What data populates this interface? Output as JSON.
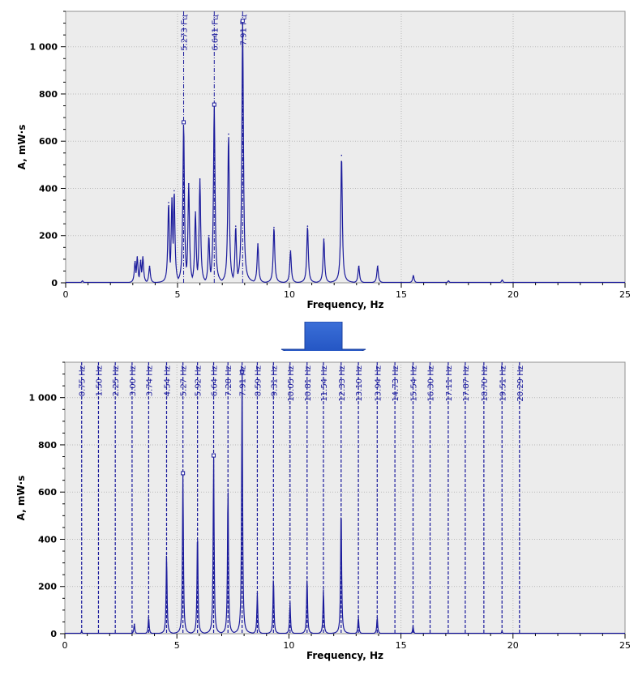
{
  "charts": [
    {
      "id": "top",
      "chart_data": {
        "type": "line",
        "xlabel": "Frequency, Hz",
        "ylabel": "A, mW·s",
        "xlim": [
          0,
          25
        ],
        "ylim": [
          0,
          1150
        ],
        "x_ticks": [
          0,
          5,
          10,
          15,
          20,
          25
        ],
        "y_ticks": [
          0,
          200,
          400,
          600,
          800,
          1000
        ],
        "y_tick_labels": [
          "0",
          "200",
          "400",
          "600",
          "800",
          "1 000"
        ],
        "grid": true,
        "line_color": "#1a1a9c",
        "marker_lines": [
          {
            "x": 5.273,
            "label": "5.273 Гц",
            "y_marker": 680
          },
          {
            "x": 6.641,
            "label": "6.641 Гц",
            "y_marker": 755
          },
          {
            "x": 7.91,
            "label": "7.91 Гц",
            "y_marker": 1110
          }
        ],
        "series": [
          {
            "peaks": [
              [
                0.75,
                8
              ],
              [
                3.1,
                90
              ],
              [
                3.2,
                110
              ],
              [
                3.35,
                95
              ],
              [
                3.45,
                110
              ],
              [
                3.75,
                70
              ],
              [
                4.6,
                340
              ],
              [
                4.75,
                360
              ],
              [
                4.85,
                390
              ],
              [
                5.273,
                680
              ],
              [
                5.5,
                420
              ],
              [
                5.8,
                300
              ],
              [
                6.0,
                440
              ],
              [
                6.4,
                200
              ],
              [
                6.641,
                755
              ],
              [
                7.28,
                630
              ],
              [
                7.6,
                240
              ],
              [
                7.91,
                1110
              ],
              [
                8.59,
                165
              ],
              [
                9.31,
                235
              ],
              [
                10.05,
                135
              ],
              [
                10.81,
                240
              ],
              [
                11.54,
                185
              ],
              [
                12.33,
                540
              ],
              [
                13.1,
                70
              ],
              [
                13.94,
                70
              ],
              [
                15.54,
                30
              ],
              [
                17.11,
                8
              ],
              [
                19.51,
                12
              ]
            ]
          }
        ]
      }
    },
    {
      "id": "bottom",
      "chart_data": {
        "type": "line",
        "xlabel": "Frequency, Hz",
        "ylabel": "A, mW·s",
        "xlim": [
          0,
          25
        ],
        "ylim": [
          0,
          1150
        ],
        "x_ticks": [
          0,
          5,
          10,
          15,
          20,
          25
        ],
        "y_ticks": [
          0,
          200,
          400,
          600,
          800,
          1000
        ],
        "y_tick_labels": [
          "0",
          "200",
          "400",
          "600",
          "800",
          "1 000"
        ],
        "grid": true,
        "line_color": "#1a1a9c",
        "marker_lines": [
          {
            "x": 0.75,
            "label": "0.75 Hz"
          },
          {
            "x": 1.5,
            "label": "1.50 Hz"
          },
          {
            "x": 2.25,
            "label": "2.25 Hz"
          },
          {
            "x": 3.0,
            "label": "3.00 Hz"
          },
          {
            "x": 3.74,
            "label": "3.74 Hz"
          },
          {
            "x": 4.54,
            "label": "4.54 Hz"
          },
          {
            "x": 5.27,
            "label": "5.27 Hz",
            "y_marker": 680
          },
          {
            "x": 5.92,
            "label": "5.92 Hz"
          },
          {
            "x": 6.64,
            "label": "6.64 Hz",
            "y_marker": 755
          },
          {
            "x": 7.28,
            "label": "7.28 Hz"
          },
          {
            "x": 7.91,
            "label": "7.91 Hz",
            "y_marker": 1110
          },
          {
            "x": 8.59,
            "label": "8.59 Hz"
          },
          {
            "x": 9.31,
            "label": "9.31 Hz"
          },
          {
            "x": 10.05,
            "label": "10.05 Hz"
          },
          {
            "x": 10.81,
            "label": "10.81 Hz"
          },
          {
            "x": 11.54,
            "label": "11.54 Hz"
          },
          {
            "x": 12.33,
            "label": "12.33 Hz"
          },
          {
            "x": 13.1,
            "label": "13.10 Hz"
          },
          {
            "x": 13.94,
            "label": "13.94 Hz"
          },
          {
            "x": 14.73,
            "label": "14.73 Hz"
          },
          {
            "x": 15.54,
            "label": "15.54 Hz"
          },
          {
            "x": 16.3,
            "label": "16.30 Hz"
          },
          {
            "x": 17.11,
            "label": "17.11 Hz"
          },
          {
            "x": 17.87,
            "label": "17.87 Hz"
          },
          {
            "x": 18.7,
            "label": "18.70 Hz"
          },
          {
            "x": 19.51,
            "label": "19.51 Hz"
          },
          {
            "x": 20.29,
            "label": "20.29 Hz"
          }
        ],
        "series": [
          {
            "peaks": [
              [
                0.75,
                10
              ],
              [
                3.1,
                40
              ],
              [
                3.74,
                70
              ],
              [
                4.54,
                340
              ],
              [
                5.27,
                680
              ],
              [
                5.92,
                440
              ],
              [
                6.64,
                755
              ],
              [
                7.28,
                630
              ],
              [
                7.91,
                1110
              ],
              [
                8.59,
                170
              ],
              [
                9.31,
                240
              ],
              [
                10.05,
                130
              ],
              [
                10.81,
                240
              ],
              [
                11.54,
                185
              ],
              [
                12.33,
                550
              ],
              [
                13.1,
                70
              ],
              [
                13.94,
                70
              ],
              [
                15.54,
                30
              ],
              [
                19.51,
                10
              ]
            ]
          }
        ]
      }
    }
  ]
}
